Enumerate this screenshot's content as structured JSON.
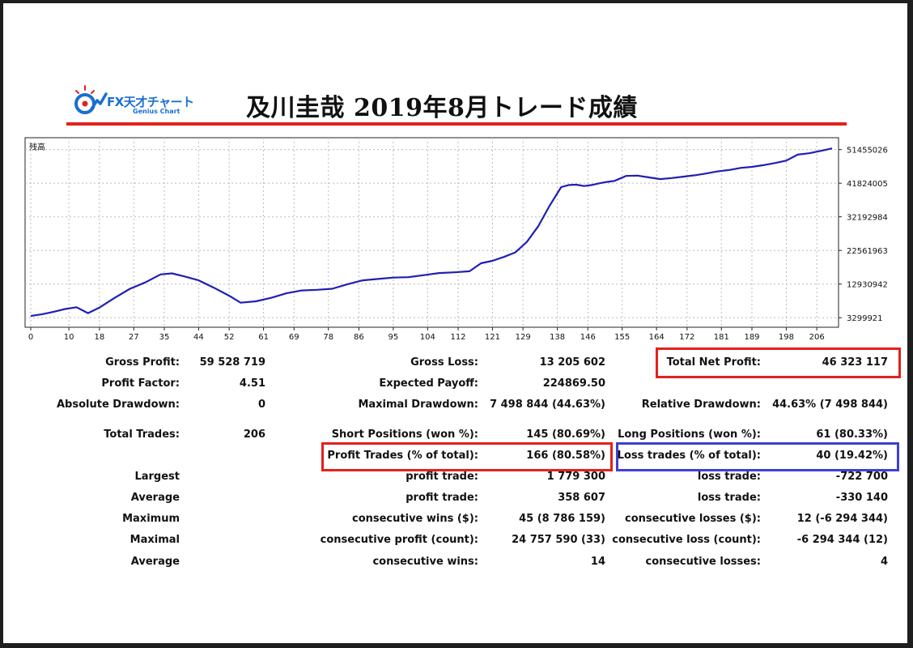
{
  "header": {
    "logo_main": "FX天才チャート",
    "logo_sub": "Genius Chart",
    "title": "及川圭哉 2019年8月トレード成績"
  },
  "colors": {
    "accent_red": "#e2211c",
    "accent_blue": "#3f3fd4",
    "line": "#1f1fb4"
  },
  "chart_data": {
    "type": "line",
    "ylabel": "残高",
    "x_ticks": [
      0,
      10,
      18,
      27,
      35,
      44,
      52,
      61,
      69,
      78,
      86,
      95,
      104,
      112,
      121,
      129,
      138,
      146,
      155,
      164,
      172,
      181,
      189,
      198,
      206
    ],
    "y_ticks": [
      51455026,
      41824005,
      32192984,
      22561963,
      12930942,
      3299921
    ],
    "xlim": [
      0,
      210
    ],
    "ylim": [
      1500000,
      53000000
    ],
    "grid": true,
    "series": [
      {
        "x": [
          0,
          3,
          6,
          9,
          12,
          15,
          18,
          22,
          26,
          30,
          34,
          37,
          40,
          44,
          48,
          52,
          55,
          59,
          63,
          67,
          71,
          75,
          79,
          83,
          87,
          91,
          95,
          99,
          103,
          107,
          111,
          115,
          118,
          121,
          124,
          127,
          130,
          133,
          136,
          139,
          141,
          143,
          145,
          147,
          149,
          151,
          153,
          156,
          159,
          162,
          165,
          168,
          171,
          174,
          177,
          180,
          183,
          186,
          189,
          192,
          195,
          198,
          201,
          204,
          208,
          210
        ],
        "y": [
          3800000,
          4300000,
          5000000,
          5800000,
          6300000,
          4600000,
          6200000,
          9000000,
          11600000,
          13400000,
          15700000,
          16000000,
          15200000,
          14000000,
          11900000,
          9600000,
          7600000,
          8000000,
          9000000,
          10300000,
          11100000,
          11300000,
          11600000,
          12900000,
          14000000,
          14400000,
          14800000,
          14900000,
          15500000,
          16100000,
          16300000,
          16600000,
          18900000,
          19600000,
          20700000,
          22000000,
          25000000,
          29500000,
          35400000,
          40700000,
          41300000,
          41400000,
          41000000,
          41300000,
          41800000,
          42200000,
          42500000,
          43900000,
          44000000,
          43500000,
          43000000,
          43300000,
          43700000,
          44100000,
          44600000,
          45200000,
          45600000,
          46200000,
          46500000,
          47000000,
          47600000,
          48300000,
          50000000,
          50400000,
          51300000,
          51800000
        ]
      }
    ]
  },
  "stats": {
    "gross_profit": {
      "label": "Gross Profit:",
      "value": "59 528 719"
    },
    "gross_loss": {
      "label": "Gross Loss:",
      "value": "13 205 602"
    },
    "total_net_profit": {
      "label": "Total Net Profit:",
      "value": "46 323 117"
    },
    "profit_factor": {
      "label": "Profit Factor:",
      "value": "4.51"
    },
    "expected_payoff": {
      "label": "Expected Payoff:",
      "value": "224869.50"
    },
    "absolute_drawdown": {
      "label": "Absolute Drawdown:",
      "value": "0"
    },
    "maximal_drawdown": {
      "label": "Maximal Drawdown:",
      "value": "7 498 844 (44.63%)"
    },
    "relative_drawdown": {
      "label": "Relative Drawdown:",
      "value": "44.63% (7 498 844)"
    },
    "total_trades": {
      "label": "Total Trades:",
      "value": "206"
    },
    "short_positions": {
      "label": "Short Positions (won %):",
      "value": "145 (80.69%)"
    },
    "long_positions": {
      "label": "Long Positions (won %):",
      "value": "61 (80.33%)"
    },
    "profit_trades": {
      "label": "Profit Trades (% of total):",
      "value": "166 (80.58%)"
    },
    "loss_trades": {
      "label": "Loss trades (% of total):",
      "value": "40 (19.42%)"
    },
    "largest": {
      "label": "Largest",
      "mid_label": "profit trade:",
      "mid_value": "1 779 300",
      "right_label": "loss trade:",
      "right_value": "-722 700"
    },
    "average": {
      "label": "Average",
      "mid_label": "profit trade:",
      "mid_value": "358 607",
      "right_label": "loss trade:",
      "right_value": "-330 140"
    },
    "maximum": {
      "label": "Maximum",
      "mid_label": "consecutive wins ($):",
      "mid_value": "45 (8 786 159)",
      "right_label": "consecutive losses ($):",
      "right_value": "12 (-6 294 344)"
    },
    "maximal": {
      "label": "Maximal",
      "mid_label": "consecutive profit (count):",
      "mid_value": "24 757 590 (33)",
      "right_label": "consecutive loss (count):",
      "right_value": "-6 294 344 (12)"
    },
    "average_consec": {
      "label": "Average",
      "mid_label": "consecutive wins:",
      "mid_value": "14",
      "right_label": "consecutive losses:",
      "right_value": "4"
    }
  }
}
